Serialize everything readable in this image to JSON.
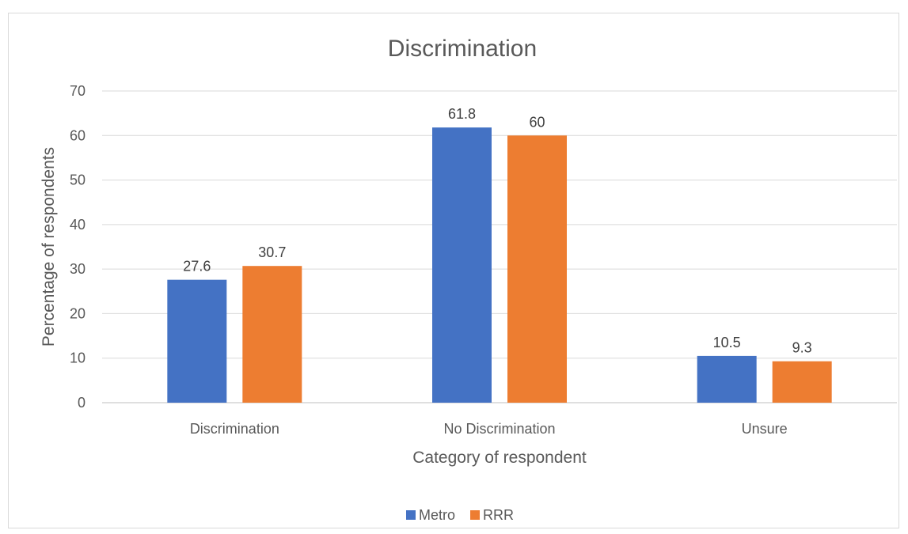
{
  "chart_data": {
    "type": "bar",
    "title": "Discrimination",
    "xlabel": "Category of respondent",
    "ylabel": "Percentage of respondents",
    "categories": [
      "Discrimination",
      "No Discrimination",
      "Unsure"
    ],
    "series": [
      {
        "name": "Metro",
        "color": "#4472c4",
        "values": [
          27.6,
          61.8,
          10.5
        ],
        "labels": [
          "27.6",
          "61.8",
          "10.5"
        ]
      },
      {
        "name": "RRR",
        "color": "#ed7d31",
        "values": [
          30.7,
          60,
          9.3
        ],
        "labels": [
          "30.7",
          "60",
          "9.3"
        ]
      }
    ],
    "ylim": [
      0,
      70
    ],
    "yticks": [
      "0",
      "10",
      "20",
      "30",
      "40",
      "50",
      "60",
      "70"
    ],
    "grid": true,
    "legend_position": "bottom"
  }
}
